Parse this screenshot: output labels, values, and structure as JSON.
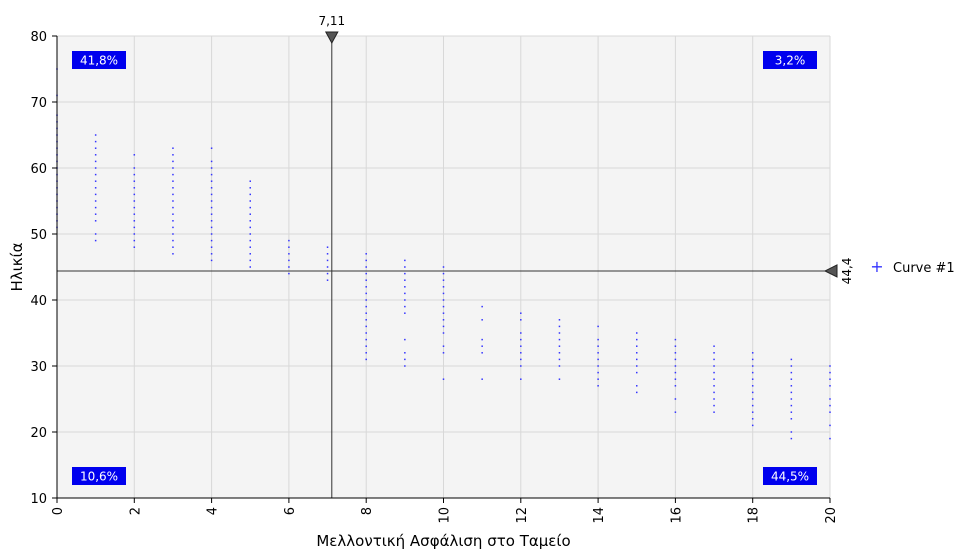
{
  "chart_data": {
    "type": "scatter",
    "xlabel": "Μελλοντική Ασφάλιση στο Ταμείο",
    "ylabel": "Ηλικία",
    "xlim": [
      0,
      20
    ],
    "ylim": [
      10,
      80
    ],
    "xticks": [
      "0",
      "2",
      "4",
      "6",
      "8",
      "10",
      "12",
      "14",
      "16",
      "18",
      "20"
    ],
    "yticks": [
      "10",
      "20",
      "30",
      "40",
      "50",
      "60",
      "70",
      "80"
    ],
    "grid": true,
    "background": "#f4f4f4",
    "point_color": "#3333ff",
    "quadrant_color": "#0000ee",
    "crosshair": {
      "x": 7.11,
      "x_label": "7,11",
      "y": 44.4,
      "y_label": "44,4"
    },
    "quadrants": {
      "top_left": "41,8%",
      "top_right": "3,2%",
      "bottom_left": "10,6%",
      "bottom_right": "44,5%"
    },
    "legend": {
      "position": "right",
      "marker": "+",
      "entries": [
        "Curve #1"
      ]
    },
    "series": [
      {
        "name": "Curve #1",
        "points": [
          [
            0,
            51
          ],
          [
            0,
            52
          ],
          [
            0,
            53
          ],
          [
            0,
            54
          ],
          [
            0,
            55
          ],
          [
            0,
            56
          ],
          [
            0,
            57
          ],
          [
            0,
            58
          ],
          [
            0,
            59
          ],
          [
            0,
            60
          ],
          [
            0,
            61
          ],
          [
            0,
            62
          ],
          [
            0,
            63
          ],
          [
            0,
            64
          ],
          [
            0,
            65
          ],
          [
            0,
            66
          ],
          [
            0,
            67
          ],
          [
            0,
            68
          ],
          [
            0,
            71
          ],
          [
            0,
            75
          ],
          [
            1,
            49
          ],
          [
            1,
            50
          ],
          [
            1,
            52
          ],
          [
            1,
            53
          ],
          [
            1,
            54
          ],
          [
            1,
            55
          ],
          [
            1,
            56
          ],
          [
            1,
            57
          ],
          [
            1,
            58
          ],
          [
            1,
            59
          ],
          [
            1,
            60
          ],
          [
            1,
            61
          ],
          [
            1,
            62
          ],
          [
            1,
            63
          ],
          [
            1,
            64
          ],
          [
            1,
            65
          ],
          [
            2,
            48
          ],
          [
            2,
            49
          ],
          [
            2,
            50
          ],
          [
            2,
            51
          ],
          [
            2,
            52
          ],
          [
            2,
            53
          ],
          [
            2,
            54
          ],
          [
            2,
            55
          ],
          [
            2,
            56
          ],
          [
            2,
            57
          ],
          [
            2,
            58
          ],
          [
            2,
            59
          ],
          [
            2,
            60
          ],
          [
            2,
            62
          ],
          [
            3,
            47
          ],
          [
            3,
            48
          ],
          [
            3,
            49
          ],
          [
            3,
            50
          ],
          [
            3,
            51
          ],
          [
            3,
            52
          ],
          [
            3,
            53
          ],
          [
            3,
            54
          ],
          [
            3,
            55
          ],
          [
            3,
            56
          ],
          [
            3,
            57
          ],
          [
            3,
            58
          ],
          [
            3,
            59
          ],
          [
            3,
            60
          ],
          [
            3,
            61
          ],
          [
            3,
            62
          ],
          [
            3,
            63
          ],
          [
            4,
            46
          ],
          [
            4,
            47
          ],
          [
            4,
            48
          ],
          [
            4,
            49
          ],
          [
            4,
            50
          ],
          [
            4,
            51
          ],
          [
            4,
            52
          ],
          [
            4,
            53
          ],
          [
            4,
            54
          ],
          [
            4,
            55
          ],
          [
            4,
            56
          ],
          [
            4,
            57
          ],
          [
            4,
            58
          ],
          [
            4,
            59
          ],
          [
            4,
            60
          ],
          [
            4,
            61
          ],
          [
            4,
            63
          ],
          [
            5,
            45
          ],
          [
            5,
            46
          ],
          [
            5,
            47
          ],
          [
            5,
            48
          ],
          [
            5,
            49
          ],
          [
            5,
            50
          ],
          [
            5,
            51
          ],
          [
            5,
            52
          ],
          [
            5,
            53
          ],
          [
            5,
            54
          ],
          [
            5,
            55
          ],
          [
            5,
            56
          ],
          [
            5,
            57
          ],
          [
            5,
            58
          ],
          [
            6,
            44
          ],
          [
            6,
            45
          ],
          [
            6,
            46
          ],
          [
            6,
            47
          ],
          [
            6,
            48
          ],
          [
            6,
            49
          ],
          [
            7,
            43
          ],
          [
            7,
            44
          ],
          [
            7,
            45
          ],
          [
            7,
            46
          ],
          [
            7,
            47
          ],
          [
            7,
            48
          ],
          [
            8,
            31
          ],
          [
            8,
            32
          ],
          [
            8,
            33
          ],
          [
            8,
            34
          ],
          [
            8,
            35
          ],
          [
            8,
            36
          ],
          [
            8,
            37
          ],
          [
            8,
            38
          ],
          [
            8,
            39
          ],
          [
            8,
            40
          ],
          [
            8,
            41
          ],
          [
            8,
            42
          ],
          [
            8,
            43
          ],
          [
            8,
            44
          ],
          [
            8,
            45
          ],
          [
            8,
            46
          ],
          [
            8,
            47
          ],
          [
            9,
            30
          ],
          [
            9,
            31
          ],
          [
            9,
            32
          ],
          [
            9,
            34
          ],
          [
            9,
            38
          ],
          [
            9,
            39
          ],
          [
            9,
            40
          ],
          [
            9,
            41
          ],
          [
            9,
            42
          ],
          [
            9,
            43
          ],
          [
            9,
            44
          ],
          [
            9,
            45
          ],
          [
            9,
            46
          ],
          [
            10,
            28
          ],
          [
            10,
            32
          ],
          [
            10,
            33
          ],
          [
            10,
            35
          ],
          [
            10,
            36
          ],
          [
            10,
            37
          ],
          [
            10,
            38
          ],
          [
            10,
            39
          ],
          [
            10,
            40
          ],
          [
            10,
            41
          ],
          [
            10,
            42
          ],
          [
            10,
            43
          ],
          [
            10,
            44
          ],
          [
            10,
            45
          ],
          [
            11,
            28
          ],
          [
            11,
            32
          ],
          [
            11,
            33
          ],
          [
            11,
            34
          ],
          [
            11,
            37
          ],
          [
            11,
            39
          ],
          [
            12,
            28
          ],
          [
            12,
            30
          ],
          [
            12,
            31
          ],
          [
            12,
            32
          ],
          [
            12,
            33
          ],
          [
            12,
            34
          ],
          [
            12,
            35
          ],
          [
            12,
            37
          ],
          [
            12,
            38
          ],
          [
            13,
            28
          ],
          [
            13,
            30
          ],
          [
            13,
            31
          ],
          [
            13,
            32
          ],
          [
            13,
            33
          ],
          [
            13,
            34
          ],
          [
            13,
            35
          ],
          [
            13,
            36
          ],
          [
            13,
            37
          ],
          [
            14,
            27
          ],
          [
            14,
            28
          ],
          [
            14,
            29
          ],
          [
            14,
            30
          ],
          [
            14,
            31
          ],
          [
            14,
            32
          ],
          [
            14,
            33
          ],
          [
            14,
            34
          ],
          [
            14,
            36
          ],
          [
            15,
            26
          ],
          [
            15,
            27
          ],
          [
            15,
            29
          ],
          [
            15,
            30
          ],
          [
            15,
            31
          ],
          [
            15,
            32
          ],
          [
            15,
            33
          ],
          [
            15,
            34
          ],
          [
            15,
            35
          ],
          [
            16,
            23
          ],
          [
            16,
            25
          ],
          [
            16,
            27
          ],
          [
            16,
            28
          ],
          [
            16,
            29
          ],
          [
            16,
            30
          ],
          [
            16,
            31
          ],
          [
            16,
            32
          ],
          [
            16,
            33
          ],
          [
            16,
            34
          ],
          [
            17,
            23
          ],
          [
            17,
            24
          ],
          [
            17,
            25
          ],
          [
            17,
            26
          ],
          [
            17,
            27
          ],
          [
            17,
            28
          ],
          [
            17,
            29
          ],
          [
            17,
            30
          ],
          [
            17,
            31
          ],
          [
            17,
            32
          ],
          [
            17,
            33
          ],
          [
            18,
            21
          ],
          [
            18,
            22
          ],
          [
            18,
            23
          ],
          [
            18,
            24
          ],
          [
            18,
            25
          ],
          [
            18,
            26
          ],
          [
            18,
            27
          ],
          [
            18,
            28
          ],
          [
            18,
            29
          ],
          [
            18,
            30
          ],
          [
            18,
            31
          ],
          [
            18,
            32
          ],
          [
            19,
            19
          ],
          [
            19,
            20
          ],
          [
            19,
            22
          ],
          [
            19,
            23
          ],
          [
            19,
            24
          ],
          [
            19,
            25
          ],
          [
            19,
            26
          ],
          [
            19,
            27
          ],
          [
            19,
            28
          ],
          [
            19,
            29
          ],
          [
            19,
            30
          ],
          [
            19,
            31
          ],
          [
            20,
            19
          ],
          [
            20,
            21
          ],
          [
            20,
            23
          ],
          [
            20,
            24
          ],
          [
            20,
            25
          ],
          [
            20,
            27
          ],
          [
            20,
            28
          ],
          [
            20,
            29
          ],
          [
            20,
            30
          ]
        ]
      }
    ]
  }
}
